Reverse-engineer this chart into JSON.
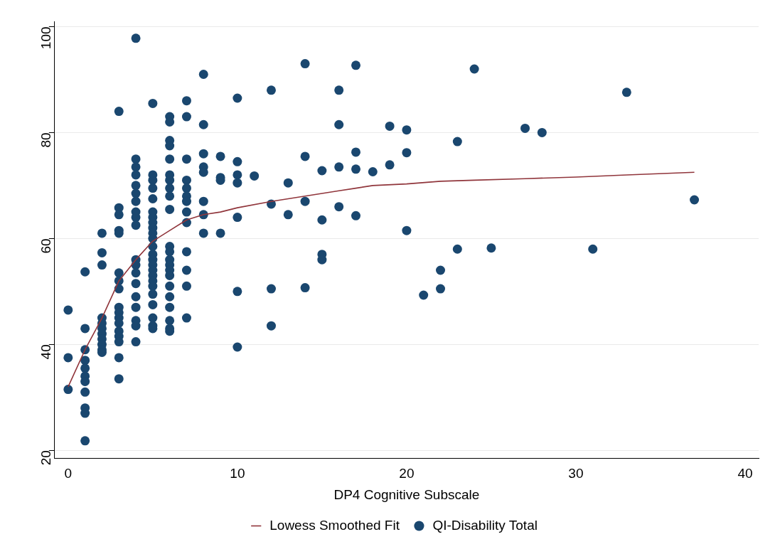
{
  "chart_data": {
    "type": "scatter",
    "xlabel": "DP4 Cognitive Subscale",
    "xlim": [
      -0.8,
      40.8
    ],
    "xticks": [
      0,
      10,
      20,
      30,
      40
    ],
    "ylim": [
      18.5,
      101
    ],
    "yticks": [
      20,
      40,
      60,
      80,
      100
    ],
    "grid": "y",
    "legend": "bottom",
    "series": [
      {
        "name": "QI-Disability Total",
        "marker": "circle",
        "color": "#1a476f",
        "x": [
          0,
          0,
          0,
          1,
          1,
          1,
          1,
          1,
          1,
          1,
          1,
          1,
          1,
          1,
          2,
          2,
          2,
          2,
          2,
          2,
          2,
          2,
          2,
          2,
          2,
          3,
          3,
          3,
          3,
          3,
          3,
          3,
          3,
          3,
          3,
          3,
          3,
          3,
          3,
          3,
          3,
          3,
          4,
          4,
          4,
          4,
          4,
          4,
          4,
          4,
          4,
          4,
          4,
          4,
          4,
          4,
          4,
          4,
          4,
          4,
          4,
          5,
          5,
          5,
          5,
          5,
          5,
          5,
          5,
          5,
          5,
          5,
          5,
          5,
          5,
          5,
          5,
          5,
          5,
          5,
          5,
          5,
          5,
          5,
          5,
          6,
          6,
          6,
          6,
          6,
          6,
          6,
          6,
          6,
          6,
          6,
          6,
          6,
          6,
          6,
          6,
          6,
          6,
          6,
          6,
          6,
          6,
          7,
          7,
          7,
          7,
          7,
          7,
          7,
          7,
          7,
          7,
          7,
          7,
          7,
          8,
          8,
          8,
          8,
          8,
          8,
          8,
          8,
          9,
          9,
          9,
          9,
          10,
          10,
          10,
          10,
          10,
          10,
          10,
          11,
          12,
          12,
          12,
          12,
          13,
          13,
          14,
          14,
          14,
          14,
          15,
          15,
          15,
          15,
          16,
          16,
          16,
          16,
          17,
          17,
          17,
          17,
          18,
          19,
          19,
          20,
          20,
          20,
          21,
          22,
          22,
          23,
          23,
          24,
          25,
          27,
          28,
          31,
          33,
          37
        ],
        "values": [
          46.5,
          37.5,
          31.5,
          53.7,
          43,
          39,
          37,
          35.5,
          34,
          33,
          31,
          28,
          27,
          21.8,
          61,
          57.3,
          55,
          45,
          44,
          43,
          42,
          41,
          40,
          39,
          38.5,
          84,
          65.8,
          64.5,
          61.5,
          61,
          53.5,
          52,
          50.5,
          47,
          46,
          45,
          44,
          42.5,
          41.5,
          40.5,
          37.5,
          33.5,
          97.8,
          75,
          73.5,
          72,
          70,
          68.5,
          67,
          65,
          64,
          62.5,
          56,
          55,
          53.5,
          51.5,
          49,
          47,
          44.5,
          43.5,
          40.5,
          85.5,
          72,
          71,
          69.5,
          67.5,
          65,
          64,
          63,
          62,
          61,
          60,
          58.5,
          57,
          56,
          55,
          54,
          53,
          52,
          51,
          49.5,
          47.5,
          45,
          43.5,
          43,
          83,
          82,
          78.5,
          77.5,
          75,
          72,
          71,
          69.5,
          68,
          65.5,
          58.5,
          57.5,
          56,
          55,
          54,
          53,
          51,
          49,
          47,
          44.5,
          43,
          42.5,
          86,
          83,
          75,
          71,
          69.5,
          68,
          67,
          65,
          63,
          57.5,
          54,
          51,
          45,
          91,
          81.5,
          76,
          73.5,
          72.5,
          67,
          64.5,
          61,
          75.5,
          71.5,
          71,
          61,
          86.5,
          74.5,
          72,
          70.5,
          64,
          50,
          39.5,
          71.8,
          88,
          66.5,
          50.5,
          43.5,
          70.5,
          64.5,
          93,
          75.5,
          67,
          50.7,
          72.8,
          63.5,
          57,
          56,
          88,
          81.5,
          73.5,
          66,
          92.7,
          76.3,
          73.1,
          64.3,
          72.6,
          81.2,
          73.9,
          80.5,
          76.2,
          61.5,
          49.3,
          54,
          50.5,
          78.3,
          58,
          92,
          58.2,
          80.8,
          80,
          58,
          87.6,
          67.3
        ]
      },
      {
        "name": "Lowess Smoothed Fit",
        "type": "line",
        "marker": "none",
        "color": "#90353b",
        "x": [
          0,
          1,
          2,
          3,
          4,
          5,
          6,
          7,
          8,
          9,
          10,
          12,
          14,
          16,
          17,
          18,
          20,
          22,
          24,
          27,
          30,
          33,
          37
        ],
        "values": [
          32,
          39,
          45,
          52,
          56,
          59.5,
          61.5,
          63.5,
          64.5,
          65,
          65.8,
          67,
          68,
          69,
          69.5,
          70,
          70.3,
          70.8,
          71,
          71.3,
          71.6,
          72,
          72.5
        ]
      }
    ]
  }
}
